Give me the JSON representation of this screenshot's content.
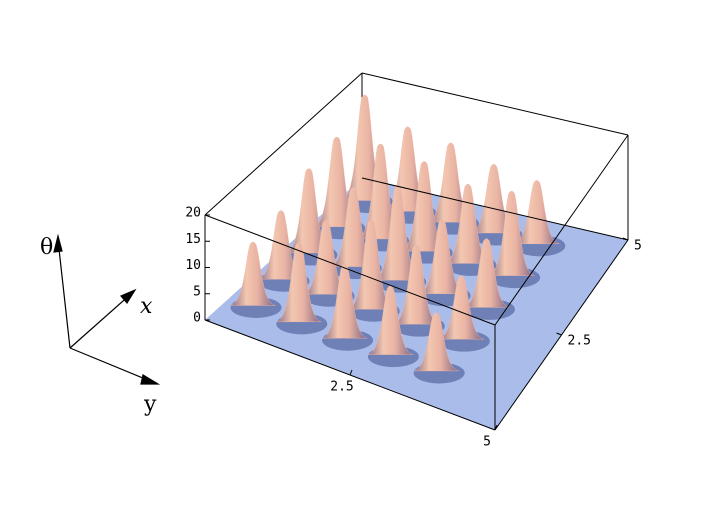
{
  "chart_data": {
    "type": "surface3d",
    "xlabel": "x",
    "ylabel": "y",
    "zlabel": "θ",
    "xlim": [
      0,
      5
    ],
    "ylim": [
      0,
      5
    ],
    "zlim": [
      0,
      20
    ],
    "xticks": [
      2.5,
      5
    ],
    "yticks": [
      2.5,
      5
    ],
    "zticks": [
      0,
      5,
      10,
      15,
      20
    ],
    "floor_color": "#a9bcea",
    "series": [
      {
        "color": "#f0b9a8",
        "x": [
          4.4,
          4.4,
          3.5,
          4.4,
          3.5,
          2.6,
          4.4,
          3.5,
          2.6,
          1.7,
          4.4,
          3.5,
          2.6,
          1.7,
          0.8,
          3.5,
          2.6,
          1.7,
          0.8,
          2.6,
          1.7,
          0.8,
          1.7,
          0.8,
          0.8
        ],
        "y": [
          0.4,
          1.2,
          0.4,
          2.0,
          1.2,
          0.4,
          2.8,
          2.0,
          1.2,
          0.4,
          3.6,
          2.8,
          2.0,
          1.2,
          0.4,
          3.6,
          2.8,
          2.0,
          1.2,
          3.6,
          2.8,
          2.0,
          3.6,
          2.8,
          3.6
        ],
        "z": [
          20,
          16,
          17,
          15,
          18,
          16,
          13,
          17,
          15,
          13,
          12,
          15,
          18,
          14,
          12,
          16,
          14,
          17,
          15,
          13,
          15,
          14,
          12,
          13,
          11
        ]
      }
    ]
  }
}
